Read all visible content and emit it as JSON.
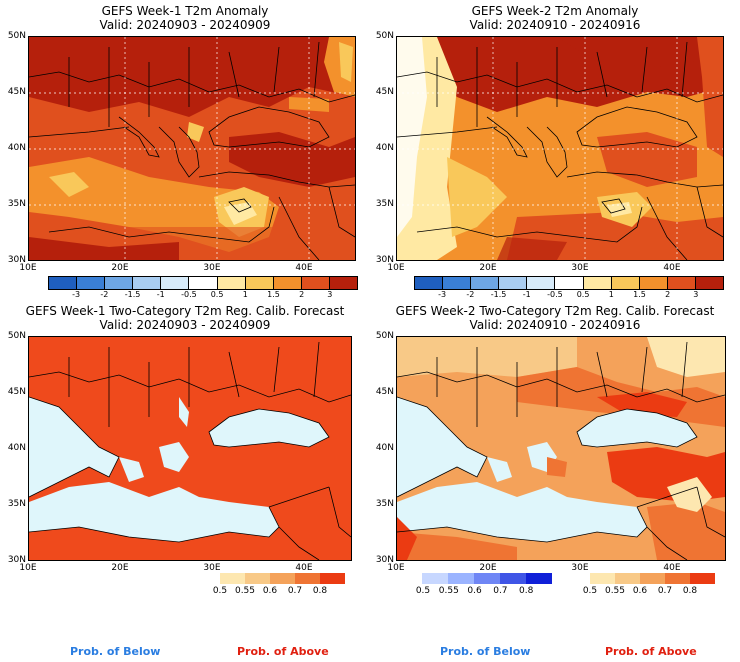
{
  "panels": {
    "p1": {
      "title": "GEFS Week-1 T2m Anomaly",
      "valid": "Valid: 20240903 - 20240909"
    },
    "p2": {
      "title": "GEFS Week-2 T2m Anomaly",
      "valid": "Valid: 20240910 - 20240916"
    },
    "p3": {
      "title": "GEFS Week-1 Two-Category T2m Reg. Calib. Forecast",
      "valid": "Valid: 20240903 - 20240909"
    },
    "p4": {
      "title": "GEFS Week-2 Two-Category T2m Reg. Calib. Forecast",
      "valid": "Valid: 20240910 - 20240916"
    }
  },
  "axes": {
    "lat_labels": [
      "50N",
      "45N",
      "40N",
      "35N",
      "30N"
    ],
    "lon_labels": [
      "10E",
      "20E",
      "30E",
      "40E"
    ]
  },
  "anomaly_colorbar": {
    "labels": [
      "-3",
      "-2",
      "-1.5",
      "-1",
      "-0.5",
      "0.5",
      "1",
      "1.5",
      "2",
      "3"
    ],
    "colors": [
      "#1f5fbf",
      "#3a7fd6",
      "#6ea6e4",
      "#a9cdf1",
      "#d7ebfa",
      "#ffffff",
      "#ffe9a3",
      "#f9c85a",
      "#f3912c",
      "#e0501e",
      "#b5200c"
    ]
  },
  "prob_below": {
    "labels": [
      "0.5",
      "0.55",
      "0.6",
      "0.7",
      "0.8"
    ],
    "colors": [
      "#c7d7ff",
      "#9bb4ff",
      "#6f86f5",
      "#3f55e6",
      "#1020d8"
    ]
  },
  "prob_above": {
    "labels": [
      "0.5",
      "0.55",
      "0.6",
      "0.7",
      "0.8"
    ],
    "colors": [
      "#fde7b0",
      "#f8c987",
      "#f4a25a",
      "#ef7433",
      "#eb3b12"
    ]
  },
  "footer": {
    "below": "Prob. of Below",
    "above": "Prob. of Above",
    "below_color": "#2a7de1",
    "above_color": "#e02010"
  },
  "map_colors": {
    "sea": "#dff6fb",
    "land_prob": "#ef4a1c",
    "anom_dark": "#b5200c",
    "anom_mid": "#e0501e",
    "anom_orange": "#f3912c",
    "anom_yellow": "#f9c85a",
    "anom_light": "#ffe9a3"
  }
}
